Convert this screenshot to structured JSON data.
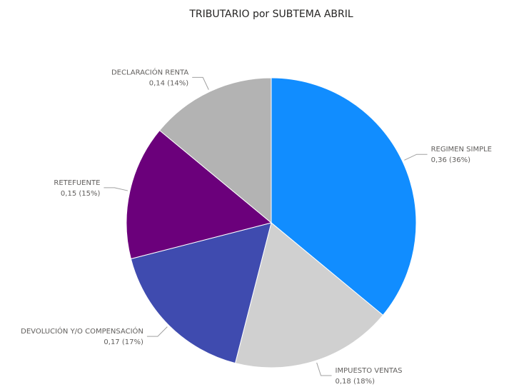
{
  "chart_data": {
    "type": "pie",
    "title": "TRIBUTARIO por SUBTEMA ABRIL",
    "categories": [
      "REGIMEN SIMPLE",
      "IMPUESTO VENTAS",
      "DEVOLUCIÓN Y/O COMPENSACIÓN",
      "RETEFUENTE",
      "DECLARACIÓN RENTA"
    ],
    "values": [
      0.36,
      0.18,
      0.17,
      0.15,
      0.14
    ],
    "value_labels": [
      "0,36 (36%)",
      "0,18 (18%)",
      "0,17 (17%)",
      "0,15 (15%)",
      "0,14 (14%)"
    ],
    "colors": [
      "#118DFF",
      "#D0D0D0",
      "#3F4BAF",
      "#6B007B",
      "#B3B3B3"
    ]
  }
}
